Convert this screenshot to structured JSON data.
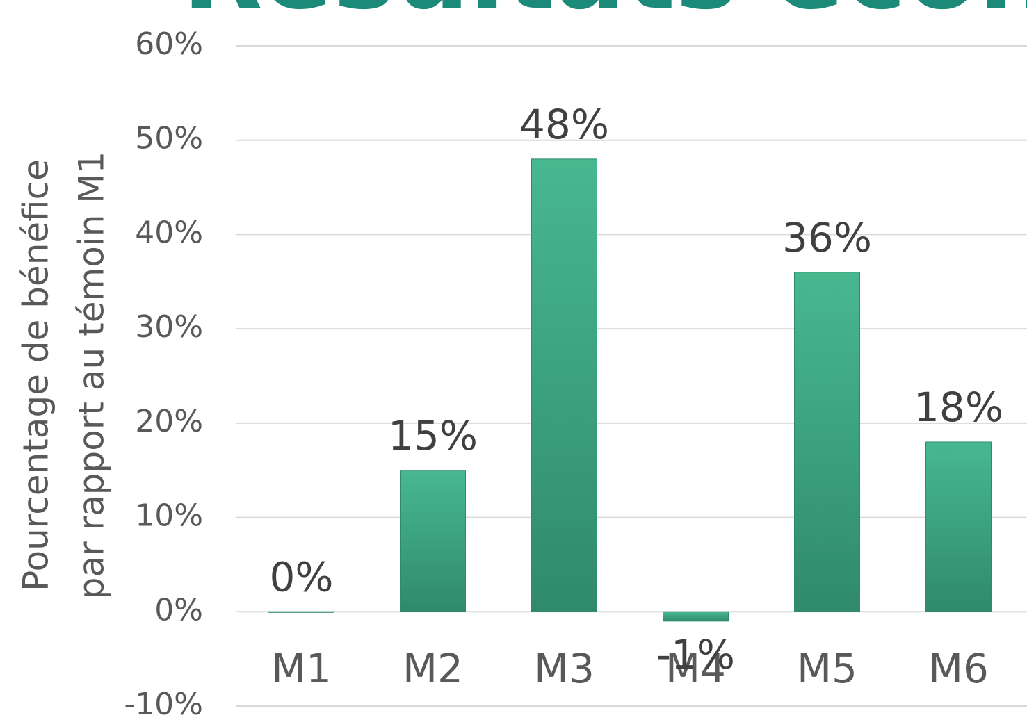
{
  "chart_data": {
    "type": "bar",
    "title": "Résultats économ",
    "y_label": [
      "Pourcentage de bénéfice",
      "par rapport au témoin M1"
    ],
    "categories": [
      "M1",
      "M2",
      "M3",
      "M4",
      "M5",
      "M6"
    ],
    "values": [
      0,
      15,
      48,
      -1,
      36,
      18
    ],
    "value_labels": [
      "0%",
      "15%",
      "48%",
      "-1%",
      "36%",
      "18%"
    ],
    "color": "#3da882",
    "ylim": [
      -10,
      60
    ],
    "yticks": [
      {
        "value": -10,
        "label": "-10%"
      },
      {
        "value": 0,
        "label": "0%"
      },
      {
        "value": 10,
        "label": "10%"
      },
      {
        "value": 20,
        "label": "20%"
      },
      {
        "value": 30,
        "label": "30%"
      },
      {
        "value": 40,
        "label": "40%"
      },
      {
        "value": 50,
        "label": "50%"
      },
      {
        "value": 60,
        "label": "60%"
      }
    ],
    "grid": true
  }
}
